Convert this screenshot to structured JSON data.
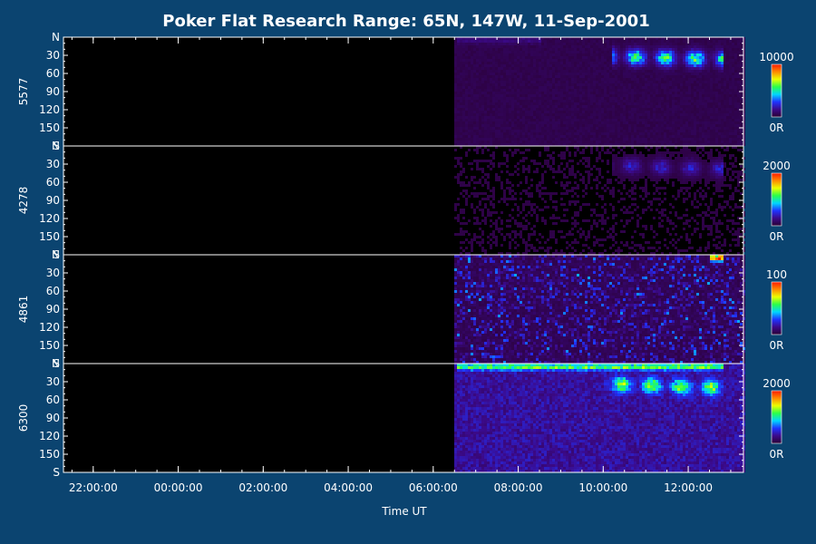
{
  "chart_data": {
    "type": "heatmap",
    "title": "Poker Flat Research Range: 65N, 147W, 11-Sep-2001",
    "xlabel": "Time UT",
    "x_tick_labels": [
      "22:00:00",
      "00:00:00",
      "02:00:00",
      "04:00:00",
      "06:00:00",
      "08:00:00",
      "10:00:00",
      "12:00:00"
    ],
    "x_tick_hours_since_start": [
      0,
      2,
      4,
      6,
      8,
      10,
      12,
      14
    ],
    "x_range_hours_since_start": [
      -0.7,
      15.3
    ],
    "data_start_hour": 8.5,
    "y_tick_labels": [
      "N",
      "30",
      "60",
      "90",
      "120",
      "150",
      "S"
    ],
    "y_range_deg": [
      0,
      180
    ],
    "panels": [
      {
        "wavelength": "5577",
        "colorbar": {
          "max_label": "10000",
          "min_label": "0R"
        },
        "features": [
          {
            "t_start": 12.2,
            "t_end": 14.8,
            "angle_deg": 30,
            "intensity": 0.55,
            "trend": 0.25
          },
          {
            "t_start": 8.5,
            "t_end": 10.5,
            "angle_deg": 3,
            "intensity": 0.08,
            "trend": 0
          }
        ],
        "background": 0.05
      },
      {
        "wavelength": "4278",
        "colorbar": {
          "max_label": "2000",
          "min_label": "0R"
        },
        "features": [
          {
            "t_start": 12.2,
            "t_end": 14.8,
            "angle_deg": 30,
            "intensity": 0.2,
            "trend": 0.3
          }
        ],
        "background": 0.03
      },
      {
        "wavelength": "4861",
        "colorbar": {
          "max_label": "100",
          "min_label": "0R"
        },
        "features": [
          {
            "t_start": 14.5,
            "t_end": 14.8,
            "angle_deg": 3,
            "intensity": 0.9,
            "trend": 0
          }
        ],
        "background": 0.15,
        "noisy": true
      },
      {
        "wavelength": "6300",
        "colorbar": {
          "max_label": "2000",
          "min_label": "0R"
        },
        "features": [
          {
            "t_start": 8.5,
            "t_end": 14.8,
            "angle_deg": 3,
            "intensity": 0.45,
            "trend": 0
          },
          {
            "t_start": 12.0,
            "t_end": 14.8,
            "angle_deg": 32,
            "intensity": 0.5,
            "trend": 0.3
          }
        ],
        "background": 0.18
      }
    ],
    "colormap": [
      "#2a0033",
      "#3b0a8a",
      "#1f33ff",
      "#00d6ff",
      "#29ff4a",
      "#eaff00",
      "#ff8a00",
      "#ff1a00"
    ]
  }
}
